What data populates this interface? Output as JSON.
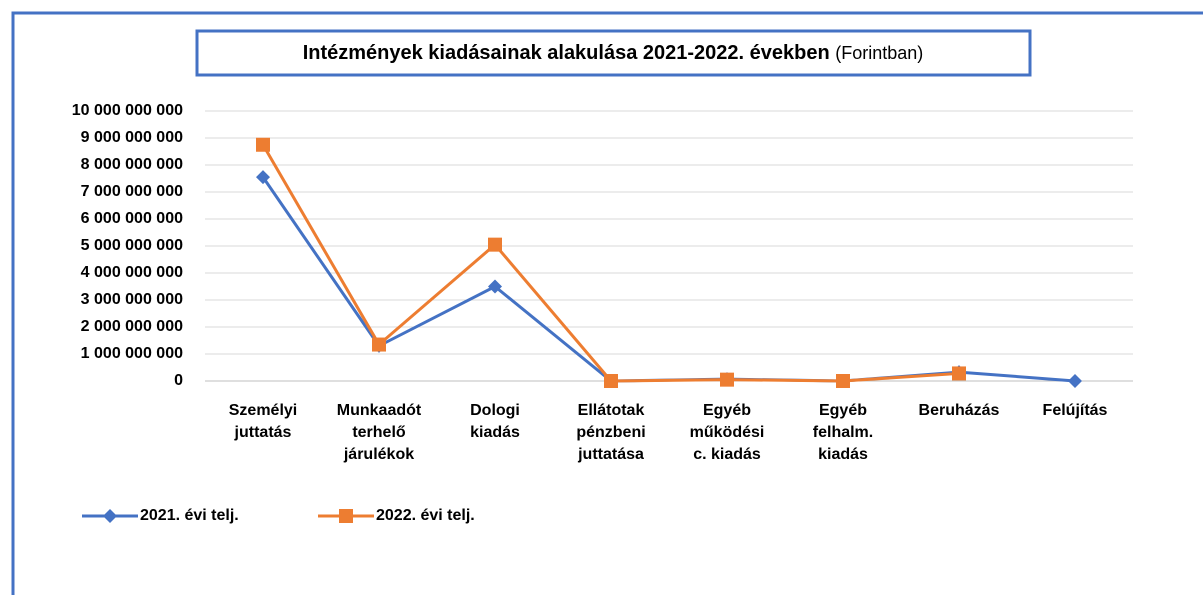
{
  "chart_data": {
    "type": "line",
    "title": "Intézmények kiadásainak alakulása 2021-2022. években",
    "subtitle": "(Forintban)",
    "categories": [
      "Személyi juttatás",
      "Munkaadót terhelő járulékok",
      "Dologi kiadás",
      "Ellátotak pénzbeni juttatása",
      "Egyéb működési c. kiadás",
      "Egyéb felhalm. kiadás",
      "Beruházás",
      "Felújítás"
    ],
    "series": [
      {
        "name": "2021. évi telj.",
        "color": "#4472c4",
        "marker": "diamond",
        "values": [
          7550000000,
          1300000000,
          3500000000,
          0,
          70000000,
          0,
          330000000,
          0
        ]
      },
      {
        "name": "2022. évi telj.",
        "color": "#ed7d31",
        "marker": "square",
        "values": [
          8750000000,
          1350000000,
          5050000000,
          0,
          50000000,
          0,
          280000000,
          null
        ]
      }
    ],
    "ylim": [
      0,
      10000000000
    ],
    "yticks": [
      0,
      {
        "value": 1000000000,
        "label": "1 000 000 000"
      },
      {
        "value": 2000000000,
        "label": "2 000 000 000"
      },
      {
        "value": 3000000000,
        "label": "3 000 000 000"
      },
      {
        "value": 4000000000,
        "label": "4 000 000 000"
      },
      {
        "value": 5000000000,
        "label": "5 000 000 000"
      },
      {
        "value": 6000000000,
        "label": "6 000 000 000"
      },
      {
        "value": 7000000000,
        "label": "7 000 000 000"
      },
      {
        "value": 8000000000,
        "label": "8 000 000 000"
      },
      {
        "value": 9000000000,
        "label": "9 000 000 000"
      },
      {
        "value": 10000000000,
        "label": "10 000 000 000"
      }
    ],
    "grid": true,
    "legend": "bottom-left"
  }
}
